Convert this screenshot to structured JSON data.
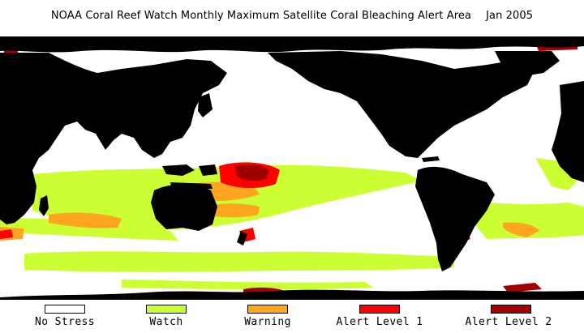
{
  "title": {
    "text": "NOAA Coral Reef Watch Monthly Maximum Satellite Coral Bleaching Alert Area",
    "date": "Jan 2005"
  },
  "map": {
    "land_color": "#000000",
    "ocean_color": "#ffffff"
  },
  "legend": [
    {
      "label": "No Stress",
      "color": "#ffffff"
    },
    {
      "label": "Watch",
      "color": "#ccff33"
    },
    {
      "label": "Warning",
      "color": "#ffa51f"
    },
    {
      "label": "Alert Level 1",
      "color": "#ff0000"
    },
    {
      "label": "Alert Level 2",
      "color": "#a00000"
    }
  ]
}
